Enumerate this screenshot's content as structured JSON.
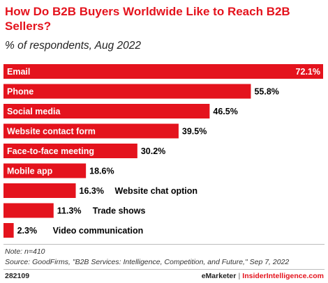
{
  "title": "How Do B2B Buyers Worldwide Like to Reach B2B Sellers?",
  "subtitle": "% of respondents, Aug 2022",
  "chart_data": {
    "type": "bar",
    "orientation": "horizontal",
    "categories": [
      "Email",
      "Phone",
      "Social media",
      "Website contact form",
      "Face-to-face meeting",
      "Mobile app",
      "Website chat option",
      "Trade shows",
      "Video communication"
    ],
    "values": [
      72.1,
      55.8,
      46.5,
      39.5,
      30.2,
      18.6,
      16.3,
      11.3,
      2.3
    ],
    "value_labels": [
      "72.1%",
      "55.8%",
      "46.5%",
      "39.5%",
      "30.2%",
      "18.6%",
      "16.3%",
      "11.3%",
      "2.3%"
    ],
    "unit": "%",
    "bar_color": "#e4131d",
    "xlim": [
      0,
      72.1
    ],
    "grid": false,
    "legend": "none"
  },
  "note": "Note: n=410",
  "source": "Source: GoodFirms, \"B2B Services: Intelligence, Competition, and Future,\" Sep 7, 2022",
  "footer": {
    "chart_id": "282109",
    "brand": "eMarketer",
    "separator": "|",
    "brand2": "InsiderIntelligence.com"
  }
}
